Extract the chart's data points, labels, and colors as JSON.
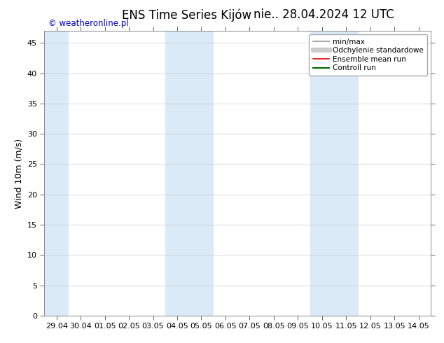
{
  "title": "ENS Time Series Kijów",
  "subtitle": "nie.. 28.04.2024 12 UTC",
  "ylabel": "Wind 10m (m/s)",
  "watermark": "© weatheronline.pl",
  "watermark_color": "#0000cc",
  "ylim": [
    0,
    47
  ],
  "yticks": [
    0,
    5,
    10,
    15,
    20,
    25,
    30,
    35,
    40,
    45
  ],
  "xtick_labels": [
    "29.04",
    "30.04",
    "01.05",
    "02.05",
    "03.05",
    "04.05",
    "05.05",
    "06.05",
    "07.05",
    "08.05",
    "09.05",
    "10.05",
    "11.05",
    "12.05",
    "13.05",
    "14.05"
  ],
  "background_color": "#ffffff",
  "shaded_bands_xstart": [
    0,
    5,
    11
  ],
  "shaded_bands_xend": [
    1,
    7,
    13
  ],
  "shade_color": "#daeaf7",
  "legend_items": [
    {
      "label": "min/max",
      "color": "#999999",
      "lw": 1.2,
      "style": "solid"
    },
    {
      "label": "Odchylenie standardowe",
      "color": "#cccccc",
      "lw": 5,
      "style": "solid"
    },
    {
      "label": "Ensemble mean run",
      "color": "#dd0000",
      "lw": 1.2,
      "style": "solid"
    },
    {
      "label": "Controll run",
      "color": "#006600",
      "lw": 1.5,
      "style": "solid"
    }
  ],
  "title_fontsize": 12,
  "tick_fontsize": 8,
  "ylabel_fontsize": 9,
  "watermark_fontsize": 8.5,
  "legend_fontsize": 7.5
}
